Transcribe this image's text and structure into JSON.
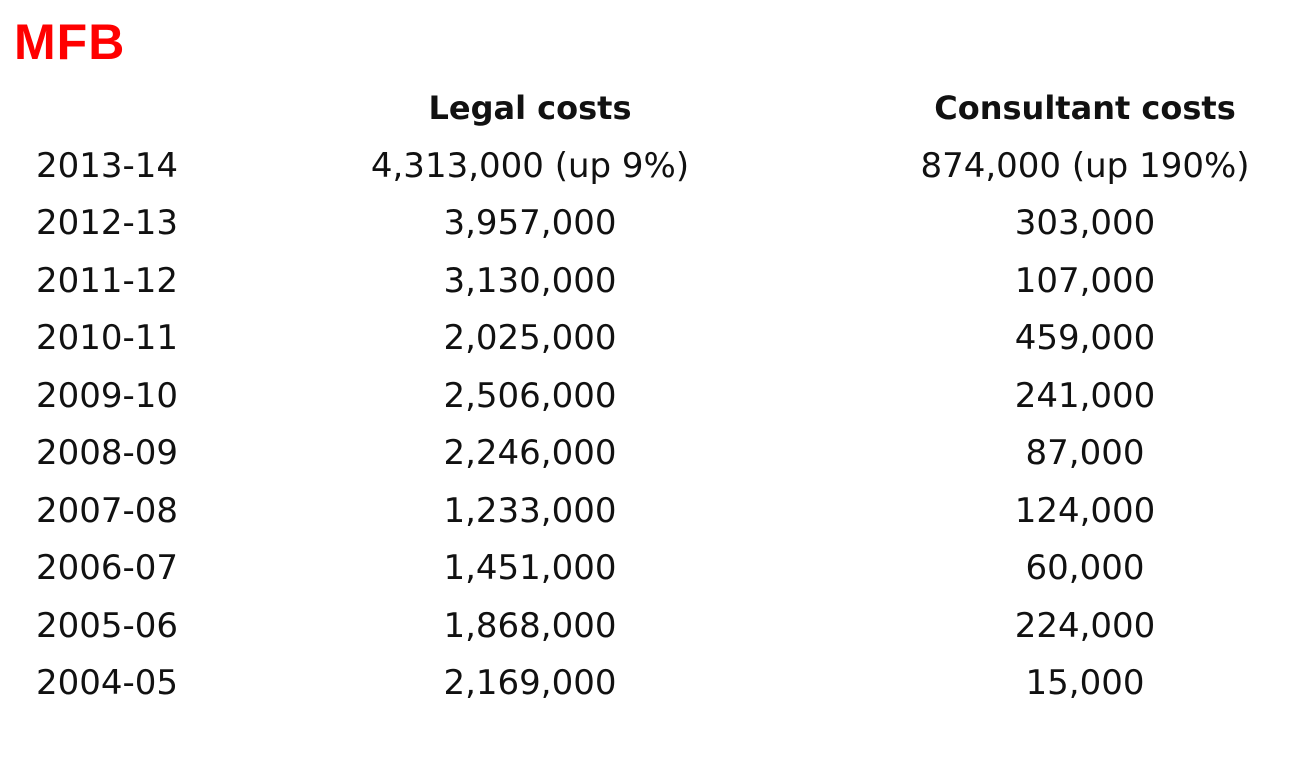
{
  "title": {
    "text": "MFB",
    "color": "#ff0000"
  },
  "table": {
    "headers": {
      "year": "",
      "legal": "Legal costs",
      "consultant": "Consultant costs"
    },
    "rows": [
      {
        "year": "2013-14",
        "legal": "4,313,000 (up 9%)",
        "consultant": "874,000 (up 190%)"
      },
      {
        "year": "2012-13",
        "legal": "3,957,000",
        "consultant": "303,000"
      },
      {
        "year": "2011-12",
        "legal": "3,130,000",
        "consultant": "107,000"
      },
      {
        "year": "2010-11",
        "legal": "2,025,000",
        "consultant": "459,000"
      },
      {
        "year": "2009-10",
        "legal": "2,506,000",
        "consultant": "241,000"
      },
      {
        "year": "2008-09",
        "legal": "2,246,000",
        "consultant": "87,000"
      },
      {
        "year": "2007-08",
        "legal": "1,233,000",
        "consultant": "124,000"
      },
      {
        "year": "2006-07",
        "legal": "1,451,000",
        "consultant": "60,000"
      },
      {
        "year": "2005-06",
        "legal": "1,868,000",
        "consultant": "224,000"
      },
      {
        "year": "2004-05",
        "legal": "2,169,000",
        "consultant": "15,000"
      }
    ]
  }
}
